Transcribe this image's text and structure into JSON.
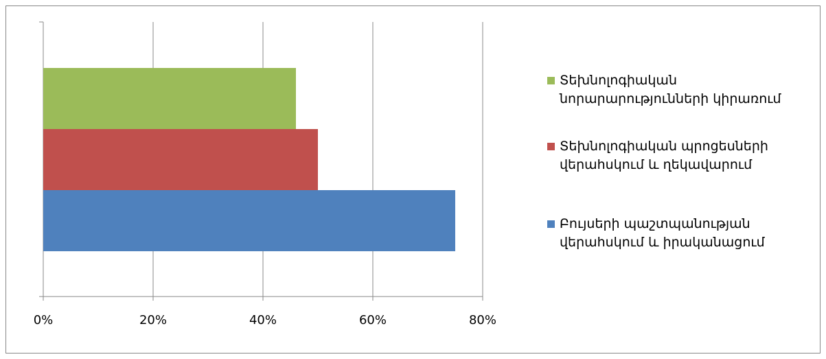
{
  "chart_data": {
    "type": "hbar",
    "categories": [
      null
    ],
    "series": [
      {
        "name": "Բույսերի պաշտպանության վերահսկում և իրականացում",
        "color": "#4f81bd",
        "values": [
          75
        ]
      },
      {
        "name": "Տեխնոլոգիական պրոցեսների վերահսկում և ղեկավարում",
        "color": "#c0504d",
        "values": [
          50
        ]
      },
      {
        "name": "Տեխնոլոգիական նորարարությունների կիրառում",
        "color": "#9bbb59",
        "values": [
          46
        ]
      }
    ],
    "xlim": [
      0,
      80
    ],
    "xticks": [
      {
        "value": 0,
        "label": "0%"
      },
      {
        "value": 20,
        "label": "20%"
      },
      {
        "value": 40,
        "label": "40%"
      },
      {
        "value": 60,
        "label": "60%"
      },
      {
        "value": 80,
        "label": "80%"
      }
    ],
    "grid": true,
    "legend": "right"
  }
}
